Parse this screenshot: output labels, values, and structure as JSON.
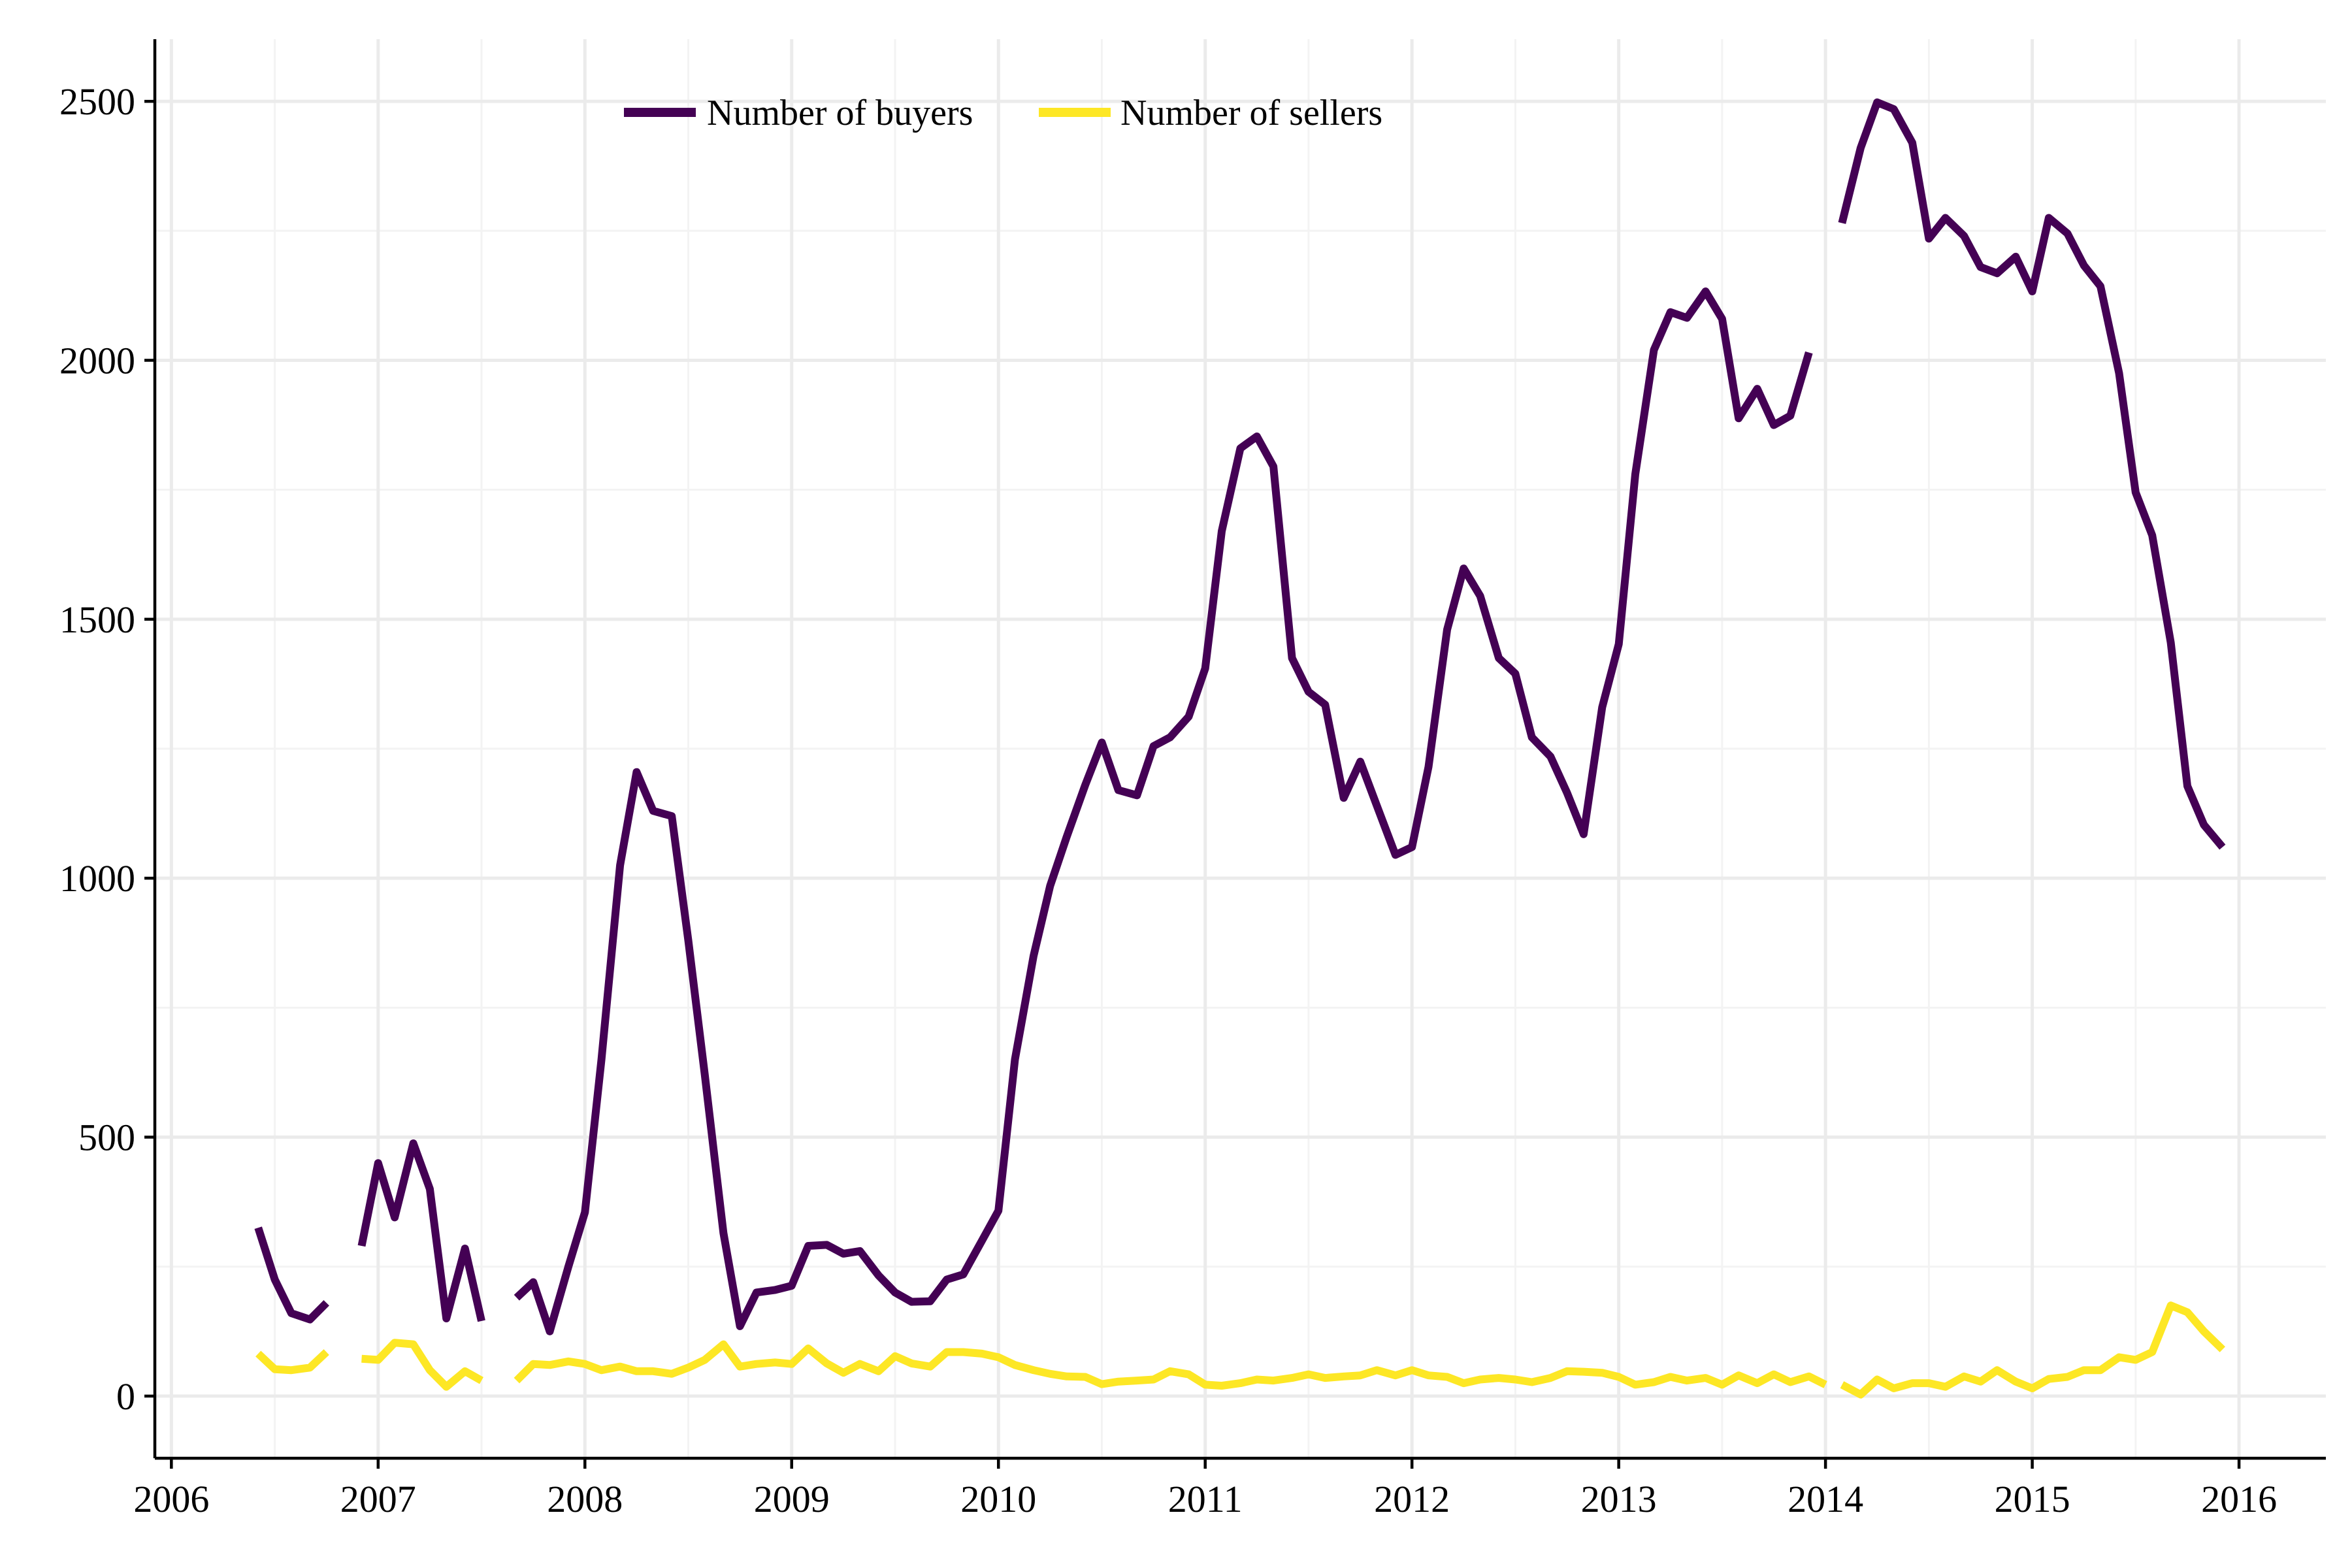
{
  "chart_data": {
    "type": "line",
    "title": "",
    "xlabel": "",
    "ylabel": "",
    "xlim": [
      2005.92,
      2016.42
    ],
    "ylim": [
      -120,
      2620
    ],
    "x_ticks": [
      2006,
      2007,
      2008,
      2009,
      2010,
      2011,
      2012,
      2013,
      2014,
      2015,
      2016
    ],
    "y_ticks": [
      0,
      500,
      1000,
      1500,
      2000,
      2500
    ],
    "grid": true,
    "legend": {
      "placement": "top-center",
      "orientation": "horizontal"
    },
    "series": [
      {
        "name": "Number of buyers",
        "color": "#440154",
        "points": [
          [
            2006.42,
            325
          ],
          [
            2006.5,
            225
          ],
          [
            2006.58,
            160
          ],
          [
            2006.67,
            148
          ],
          [
            2006.75,
            180
          ],
          null,
          [
            2006.92,
            290
          ],
          [
            2007.0,
            450
          ],
          [
            2007.08,
            345
          ],
          [
            2007.17,
            488
          ],
          [
            2007.25,
            400
          ],
          [
            2007.33,
            150
          ],
          [
            2007.42,
            285
          ],
          [
            2007.5,
            145
          ],
          null,
          [
            2007.67,
            190
          ],
          [
            2007.75,
            220
          ],
          [
            2007.83,
            125
          ],
          [
            2007.92,
            250
          ],
          [
            2008.0,
            355
          ],
          [
            2008.08,
            650
          ],
          [
            2008.17,
            1025
          ],
          [
            2008.25,
            1205
          ],
          [
            2008.33,
            1130
          ],
          [
            2008.42,
            1120
          ],
          [
            2008.5,
            880
          ],
          [
            2008.58,
            620
          ],
          [
            2008.67,
            315
          ],
          [
            2008.75,
            135
          ],
          [
            2008.83,
            200
          ],
          [
            2008.92,
            205
          ],
          [
            2009.0,
            213
          ],
          [
            2009.08,
            290
          ],
          [
            2009.17,
            292
          ],
          [
            2009.25,
            275
          ],
          [
            2009.33,
            280
          ],
          [
            2009.42,
            233
          ],
          [
            2009.5,
            200
          ],
          [
            2009.58,
            182
          ],
          [
            2009.67,
            183
          ],
          [
            2009.75,
            225
          ],
          [
            2009.83,
            235
          ],
          [
            2009.92,
            300
          ],
          [
            2010.0,
            358
          ],
          [
            2010.08,
            650
          ],
          [
            2010.17,
            850
          ],
          [
            2010.25,
            985
          ],
          [
            2010.33,
            1080
          ],
          [
            2010.42,
            1180
          ],
          [
            2010.5,
            1262
          ],
          [
            2010.58,
            1170
          ],
          [
            2010.67,
            1160
          ],
          [
            2010.75,
            1255
          ],
          [
            2010.83,
            1272
          ],
          [
            2010.92,
            1312
          ],
          [
            2011.0,
            1405
          ],
          [
            2011.08,
            1670
          ],
          [
            2011.17,
            1830
          ],
          [
            2011.25,
            1853
          ],
          [
            2011.33,
            1795
          ],
          [
            2011.42,
            1425
          ],
          [
            2011.5,
            1360
          ],
          [
            2011.58,
            1335
          ],
          [
            2011.67,
            1155
          ],
          [
            2011.75,
            1225
          ],
          [
            2011.83,
            1140
          ],
          [
            2011.92,
            1045
          ],
          [
            2012.0,
            1060
          ],
          [
            2012.08,
            1215
          ],
          [
            2012.17,
            1480
          ],
          [
            2012.25,
            1598
          ],
          [
            2012.33,
            1545
          ],
          [
            2012.42,
            1425
          ],
          [
            2012.5,
            1395
          ],
          [
            2012.58,
            1272
          ],
          [
            2012.67,
            1235
          ],
          [
            2012.75,
            1165
          ],
          [
            2012.83,
            1085
          ],
          [
            2012.92,
            1330
          ],
          [
            2013.0,
            1452
          ],
          [
            2013.08,
            1780
          ],
          [
            2013.17,
            2020
          ],
          [
            2013.25,
            2093
          ],
          [
            2013.33,
            2082
          ],
          [
            2013.42,
            2133
          ],
          [
            2013.5,
            2080
          ],
          [
            2013.58,
            1888
          ],
          [
            2013.67,
            1945
          ],
          [
            2013.75,
            1875
          ],
          [
            2013.83,
            1893
          ],
          [
            2013.92,
            2015
          ],
          null,
          [
            2014.08,
            2265
          ],
          [
            2014.17,
            2410
          ],
          [
            2014.25,
            2498
          ],
          [
            2014.33,
            2485
          ],
          [
            2014.42,
            2420
          ],
          [
            2014.5,
            2235
          ],
          [
            2014.58,
            2275
          ],
          [
            2014.67,
            2240
          ],
          [
            2014.75,
            2180
          ],
          [
            2014.83,
            2168
          ],
          [
            2014.92,
            2200
          ],
          [
            2015.0,
            2133
          ],
          [
            2015.08,
            2275
          ],
          [
            2015.17,
            2245
          ],
          [
            2015.25,
            2183
          ],
          [
            2015.33,
            2143
          ],
          [
            2015.42,
            1975
          ],
          [
            2015.5,
            1745
          ],
          [
            2015.58,
            1662
          ],
          [
            2015.67,
            1455
          ],
          [
            2015.75,
            1178
          ],
          [
            2015.83,
            1103
          ],
          [
            2015.92,
            1060
          ]
        ]
      },
      {
        "name": "Number of sellers",
        "color": "#fde725",
        "points": [
          [
            2006.42,
            82
          ],
          [
            2006.5,
            52
          ],
          [
            2006.58,
            50
          ],
          [
            2006.67,
            55
          ],
          [
            2006.75,
            85
          ],
          null,
          [
            2006.92,
            72
          ],
          [
            2007.0,
            70
          ],
          [
            2007.08,
            103
          ],
          [
            2007.17,
            100
          ],
          [
            2007.25,
            50
          ],
          [
            2007.33,
            18
          ],
          [
            2007.42,
            48
          ],
          [
            2007.5,
            30
          ],
          null,
          [
            2007.67,
            30
          ],
          [
            2007.75,
            62
          ],
          [
            2007.83,
            60
          ],
          [
            2007.92,
            67
          ],
          [
            2008.0,
            62
          ],
          [
            2008.08,
            50
          ],
          [
            2008.17,
            57
          ],
          [
            2008.25,
            48
          ],
          [
            2008.33,
            48
          ],
          [
            2008.42,
            43
          ],
          [
            2008.5,
            55
          ],
          [
            2008.58,
            70
          ],
          [
            2008.67,
            100
          ],
          [
            2008.75,
            57
          ],
          [
            2008.83,
            62
          ],
          [
            2008.92,
            65
          ],
          [
            2009.0,
            62
          ],
          [
            2009.08,
            92
          ],
          [
            2009.17,
            63
          ],
          [
            2009.25,
            45
          ],
          [
            2009.33,
            62
          ],
          [
            2009.42,
            48
          ],
          [
            2009.5,
            77
          ],
          [
            2009.58,
            63
          ],
          [
            2009.67,
            57
          ],
          [
            2009.75,
            85
          ],
          [
            2009.83,
            85
          ],
          [
            2009.92,
            82
          ],
          [
            2010.0,
            75
          ],
          [
            2010.08,
            60
          ],
          [
            2010.17,
            50
          ],
          [
            2010.25,
            43
          ],
          [
            2010.33,
            38
          ],
          [
            2010.42,
            37
          ],
          [
            2010.5,
            23
          ],
          [
            2010.58,
            28
          ],
          [
            2010.67,
            30
          ],
          [
            2010.75,
            32
          ],
          [
            2010.83,
            48
          ],
          [
            2010.92,
            42
          ],
          [
            2011.0,
            22
          ],
          [
            2011.08,
            20
          ],
          [
            2011.17,
            25
          ],
          [
            2011.25,
            32
          ],
          [
            2011.33,
            30
          ],
          [
            2011.42,
            35
          ],
          [
            2011.5,
            42
          ],
          [
            2011.58,
            35
          ],
          [
            2011.67,
            38
          ],
          [
            2011.75,
            40
          ],
          [
            2011.83,
            50
          ],
          [
            2011.92,
            40
          ],
          [
            2012.0,
            50
          ],
          [
            2012.08,
            40
          ],
          [
            2012.17,
            37
          ],
          [
            2012.25,
            25
          ],
          [
            2012.33,
            32
          ],
          [
            2012.42,
            35
          ],
          [
            2012.5,
            32
          ],
          [
            2012.58,
            27
          ],
          [
            2012.67,
            35
          ],
          [
            2012.75,
            48
          ],
          [
            2012.83,
            47
          ],
          [
            2012.92,
            45
          ],
          [
            2013.0,
            37
          ],
          [
            2013.08,
            22
          ],
          [
            2013.17,
            27
          ],
          [
            2013.25,
            37
          ],
          [
            2013.33,
            30
          ],
          [
            2013.42,
            35
          ],
          [
            2013.5,
            22
          ],
          [
            2013.58,
            40
          ],
          [
            2013.67,
            25
          ],
          [
            2013.75,
            42
          ],
          [
            2013.83,
            27
          ],
          [
            2013.92,
            38
          ],
          [
            2014.0,
            22
          ],
          null,
          [
            2014.08,
            22
          ],
          [
            2014.17,
            3
          ],
          [
            2014.25,
            32
          ],
          [
            2014.33,
            15
          ],
          [
            2014.42,
            25
          ],
          [
            2014.5,
            25
          ],
          [
            2014.58,
            18
          ],
          [
            2014.67,
            38
          ],
          [
            2014.75,
            28
          ],
          [
            2014.83,
            50
          ],
          [
            2014.92,
            28
          ],
          [
            2015.0,
            15
          ],
          [
            2015.08,
            33
          ],
          [
            2015.17,
            37
          ],
          [
            2015.25,
            50
          ],
          [
            2015.33,
            50
          ],
          [
            2015.42,
            75
          ],
          [
            2015.5,
            70
          ],
          [
            2015.58,
            85
          ],
          [
            2015.67,
            175
          ],
          [
            2015.75,
            162
          ],
          [
            2015.83,
            125
          ],
          [
            2015.92,
            90
          ]
        ]
      }
    ]
  }
}
